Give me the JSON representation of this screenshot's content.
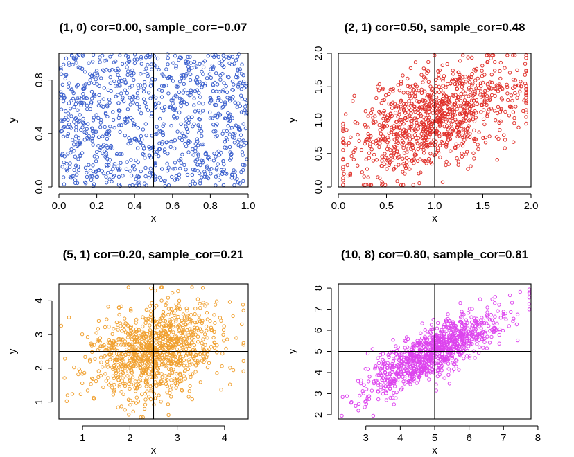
{
  "chart_data": [
    {
      "type": "scatter",
      "title": "(1, 0) cor=0.00, sample_cor=−0.07",
      "xlabel": "x",
      "ylabel": "y",
      "xlim": [
        0,
        1
      ],
      "ylim": [
        0,
        1
      ],
      "xticks": [
        0.0,
        0.2,
        0.4,
        0.6,
        0.8,
        1.0
      ],
      "xtick_labels": [
        "0.0",
        "0.2",
        "0.4",
        "0.6",
        "0.8",
        "1.0"
      ],
      "yticks": [
        0.0,
        0.4,
        0.8
      ],
      "ytick_labels": [
        "0.0",
        "0.4",
        "0.8"
      ],
      "reference_lines": {
        "x": 0.5,
        "y": 0.5
      },
      "series": [
        {
          "color": "#3a5fcd",
          "n_points": 1000,
          "population_cor": 0.0,
          "sample_cor": -0.07,
          "marker": "open-circle"
        }
      ],
      "grid": false,
      "legend": "none"
    },
    {
      "type": "scatter",
      "title": "(2, 1) cor=0.50, sample_cor=0.48",
      "xlabel": "x",
      "ylabel": "y",
      "xlim": [
        0,
        2
      ],
      "ylim": [
        0,
        2
      ],
      "xticks": [
        0.0,
        0.5,
        1.0,
        1.5,
        2.0
      ],
      "xtick_labels": [
        "0.0",
        "0.5",
        "1.0",
        "1.5",
        "2.0"
      ],
      "yticks": [
        0.0,
        0.5,
        1.0,
        1.5,
        2.0
      ],
      "ytick_labels": [
        "0.0",
        "0.5",
        "1.0",
        "1.5",
        "2.0"
      ],
      "reference_lines": {
        "x": 1.0,
        "y": 1.0
      },
      "series": [
        {
          "color": "#e0302a",
          "n_points": 1000,
          "population_cor": 0.5,
          "sample_cor": 0.48,
          "marker": "open-circle"
        }
      ],
      "grid": false,
      "legend": "none"
    },
    {
      "type": "scatter",
      "title": "(5, 1) cor=0.20, sample_cor=0.21",
      "xlabel": "x",
      "ylabel": "y",
      "xlim": [
        0.5,
        4.5
      ],
      "ylim": [
        0.5,
        4.5
      ],
      "xticks": [
        1,
        2,
        3,
        4
      ],
      "xtick_labels": [
        "1",
        "2",
        "3",
        "4"
      ],
      "yticks": [
        1,
        2,
        3,
        4
      ],
      "ytick_labels": [
        "1",
        "2",
        "3",
        "4"
      ],
      "reference_lines": {
        "x": 2.5,
        "y": 2.5
      },
      "series": [
        {
          "color": "#f0a030",
          "n_points": 1000,
          "population_cor": 0.2,
          "sample_cor": 0.21,
          "marker": "open-circle"
        }
      ],
      "grid": false,
      "legend": "none"
    },
    {
      "type": "scatter",
      "title": "(10, 8) cor=0.80, sample_cor=0.81",
      "xlabel": "x",
      "ylabel": "y",
      "xlim": [
        2.2,
        7.8
      ],
      "ylim": [
        1.8,
        8.2
      ],
      "xticks": [
        3,
        4,
        5,
        6,
        7,
        8
      ],
      "xtick_labels": [
        "3",
        "4",
        "5",
        "6",
        "7",
        "8"
      ],
      "yticks": [
        2,
        3,
        4,
        5,
        6,
        7,
        8
      ],
      "ytick_labels": [
        "2",
        "3",
        "4",
        "5",
        "6",
        "7",
        "8"
      ],
      "reference_lines": {
        "x": 5.0,
        "y": 5.0
      },
      "series": [
        {
          "color": "#dd44ee",
          "n_points": 1000,
          "population_cor": 0.8,
          "sample_cor": 0.81,
          "marker": "open-circle"
        }
      ],
      "grid": false,
      "legend": "none"
    }
  ]
}
